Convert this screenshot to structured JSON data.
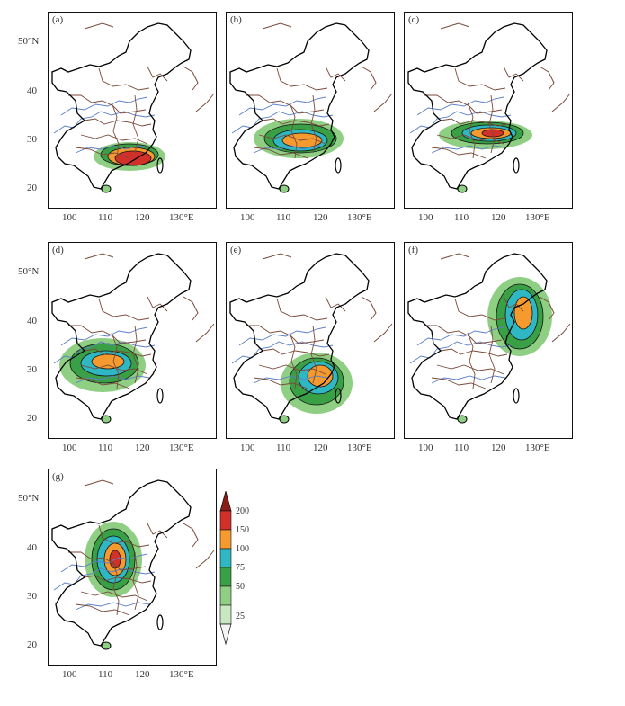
{
  "panels": [
    {
      "id": "a",
      "label": "(a)"
    },
    {
      "id": "b",
      "label": "(b)"
    },
    {
      "id": "c",
      "label": "(c)"
    },
    {
      "id": "d",
      "label": "(d)"
    },
    {
      "id": "e",
      "label": "(e)"
    },
    {
      "id": "f",
      "label": "(f)"
    },
    {
      "id": "g",
      "label": "(g)"
    }
  ],
  "axes": {
    "x_ticks": [
      "100",
      "110",
      "120",
      "130°E"
    ],
    "y_ticks": [
      "50°N",
      "40",
      "30",
      "20"
    ]
  },
  "colorbar": {
    "levels": [
      "200",
      "150",
      "100",
      "75",
      "50",
      "25"
    ],
    "colors": [
      "#f4f4f4",
      "#c9e8c2",
      "#8fcf83",
      "#3aa046",
      "#2fb8c4",
      "#f59a2e",
      "#d2312a",
      "#8a1c16"
    ]
  },
  "colors": {
    "coast": "#000000",
    "province": "#7a4a3a",
    "river": "#5a7fc8",
    "contour": "#111111"
  }
}
